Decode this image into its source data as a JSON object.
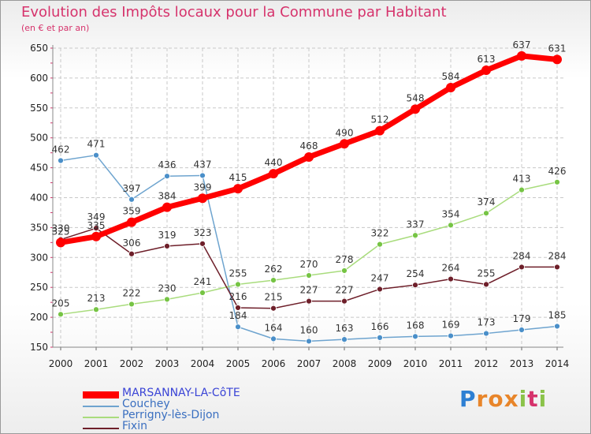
{
  "title": "Evolution des Impôts locaux pour la Commune par Habitant",
  "subtitle": "(en € et par an)",
  "logo_text": "Proxiti",
  "colors": {
    "title": "#d6336c",
    "grid": "#c8c8c8",
    "axis_text": "#222222",
    "label_text": "#333333"
  },
  "chart_data": {
    "type": "line",
    "categories": [
      "2000",
      "2001",
      "2002",
      "2003",
      "2004",
      "2005",
      "2006",
      "2007",
      "2008",
      "2009",
      "2010",
      "2011",
      "2012",
      "2013",
      "2014"
    ],
    "ylim": [
      150,
      650
    ],
    "yticks": [
      150,
      200,
      250,
      300,
      350,
      400,
      450,
      500,
      550,
      600,
      650
    ],
    "grid": true,
    "legend_position": "bottom-left",
    "series": [
      {
        "name": "MARSANNAY-LA-CôTE",
        "color": "#ff0000",
        "marker": "#ff0000",
        "width": 7,
        "values": [
          325,
          335,
          359,
          384,
          399,
          415,
          440,
          468,
          490,
          512,
          548,
          584,
          613,
          637,
          631
        ]
      },
      {
        "name": "Couchey",
        "color": "#6ea4cf",
        "marker": "#4a8fc9",
        "width": 1.5,
        "values": [
          462,
          471,
          397,
          436,
          437,
          184,
          164,
          160,
          163,
          166,
          168,
          169,
          173,
          179,
          185
        ]
      },
      {
        "name": "Perrigny-lès-Dijon",
        "color": "#a9dc7d",
        "marker": "#76c444",
        "width": 1.5,
        "values": [
          205,
          213,
          222,
          230,
          241,
          255,
          262,
          270,
          278,
          322,
          337,
          354,
          374,
          413,
          426
        ]
      },
      {
        "name": "Fixin",
        "color": "#6e1f2a",
        "marker": "#6e1f2a",
        "width": 1.5,
        "values": [
          330,
          349,
          306,
          319,
          323,
          216,
          215,
          227,
          227,
          247,
          254,
          264,
          255,
          284,
          284
        ]
      }
    ]
  }
}
